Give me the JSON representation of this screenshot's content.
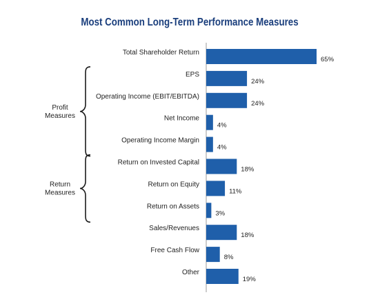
{
  "chart_data": {
    "type": "bar",
    "orientation": "horizontal",
    "title": "Most Common Long-Term Performance Measures",
    "categories": [
      "Total Shareholder Return",
      "EPS",
      "Operating Income (EBIT/EBITDA)",
      "Net Income",
      "Operating Income Margin",
      "Return on Invested Capital",
      "Return on Equity",
      "Return on Assets",
      "Sales/Revenues",
      "Free Cash Flow",
      "Other"
    ],
    "values": [
      65,
      24,
      24,
      4,
      4,
      18,
      11,
      3,
      18,
      8,
      19
    ],
    "value_labels": [
      "65%",
      "24%",
      "24%",
      "4%",
      "4%",
      "18%",
      "11%",
      "3%",
      "18%",
      "8%",
      "19%"
    ],
    "xlim": [
      0,
      100
    ],
    "groups": [
      {
        "label_lines": [
          "Profit",
          "Measures"
        ],
        "start_index": 1,
        "end_index": 4
      },
      {
        "label_lines": [
          "Return",
          "Measures"
        ],
        "start_index": 5,
        "end_index": 7
      }
    ],
    "bar_color": "#1f5faa",
    "title_color": "#1a3e7c",
    "grid": false
  }
}
